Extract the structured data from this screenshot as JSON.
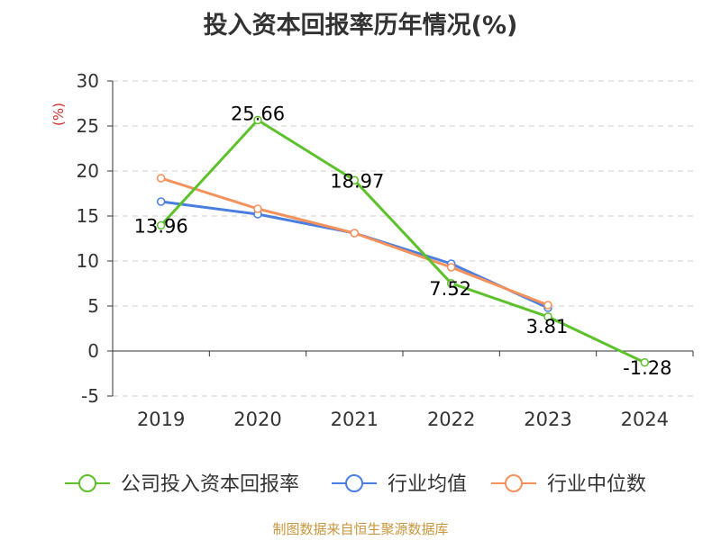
{
  "title": "投入资本回报率历年情况(%)",
  "source_note": "制图数据来自恒生聚源数据库",
  "colors": {
    "company": "#5cc12b",
    "industry_mean": "#4a7ee0",
    "industry_median": "#f5915a",
    "axis": "#333333",
    "grid": "#cccccc",
    "unit": "#d42a2a",
    "text": "#333333"
  },
  "chart_data": {
    "type": "line",
    "title": "投入资本回报率历年情况(%)",
    "ylabel": "(%)",
    "xlabel": "",
    "ylim": [
      -5,
      30
    ],
    "yticks": [
      -5,
      0,
      5,
      10,
      15,
      20,
      25,
      30
    ],
    "grid": true,
    "legend_position": "bottom",
    "categories": [
      "2019",
      "2020",
      "2021",
      "2022",
      "2023",
      "2024"
    ],
    "series": [
      {
        "name": "公司投入资本回报率",
        "values": [
          13.96,
          25.66,
          18.97,
          7.52,
          3.81,
          -1.28
        ],
        "labels": [
          "13.96",
          "25.66",
          "18.97",
          "7.52",
          "3.81",
          "-1.28"
        ]
      },
      {
        "name": "行业均值",
        "values": [
          16.6,
          15.2,
          13.1,
          9.7,
          4.8,
          null
        ]
      },
      {
        "name": "行业中位数",
        "values": [
          19.2,
          15.8,
          13.1,
          9.3,
          5.1,
          null
        ]
      }
    ]
  }
}
